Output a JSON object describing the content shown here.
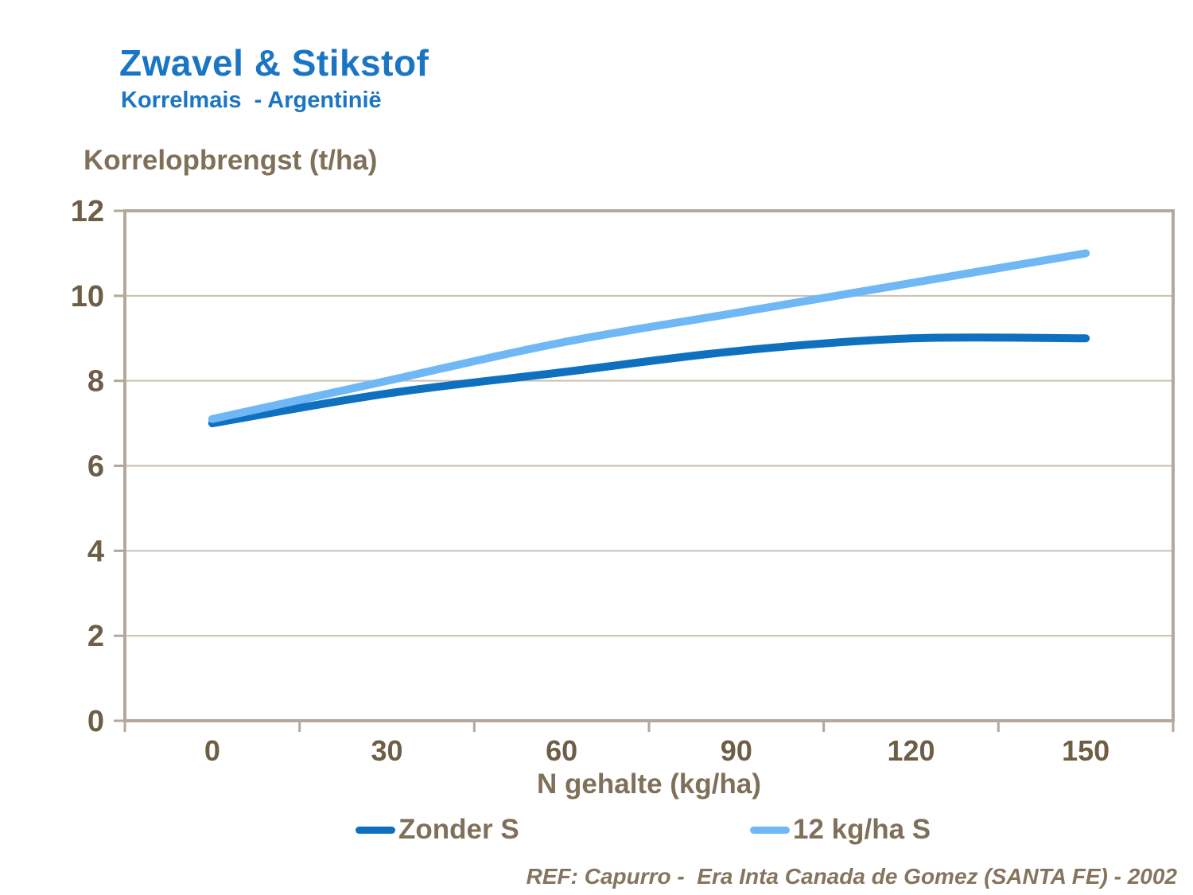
{
  "page": {
    "title": "Zwavel & Stikstof",
    "subtitle": "Korrelmais  - Argentinië",
    "footer": "REF: Capurro -  Era Inta Canada de Gomez (SANTA FE) - 2002"
  },
  "style": {
    "background": "#FFFFFF",
    "title_color": "#1A76C4",
    "label_color": "#80705A",
    "tick_color": "#6E5E46",
    "footer_color": "#85755F",
    "axis_color": "#B3A89B",
    "grid_color": "#C9BFB1"
  },
  "chart_data": {
    "type": "line",
    "smooth": true,
    "ylabel": "Korrelopbrengst (t/ha)",
    "xlabel": "N gehalte (kg/ha)",
    "categories": [
      0,
      30,
      60,
      90,
      120,
      150
    ],
    "series": [
      {
        "name": "Zonder S",
        "color": "#0E70BF",
        "values": [
          7.0,
          7.7,
          8.2,
          8.7,
          9.0,
          9.0
        ]
      },
      {
        "name": "12 kg/ha S",
        "color": "#6FB7F5",
        "values": [
          7.1,
          8.0,
          8.9,
          9.6,
          10.3,
          11.0
        ]
      }
    ],
    "ylim": [
      0,
      12
    ],
    "ytick_step": 2,
    "grid": "horizontal",
    "legend_position": "bottom"
  }
}
